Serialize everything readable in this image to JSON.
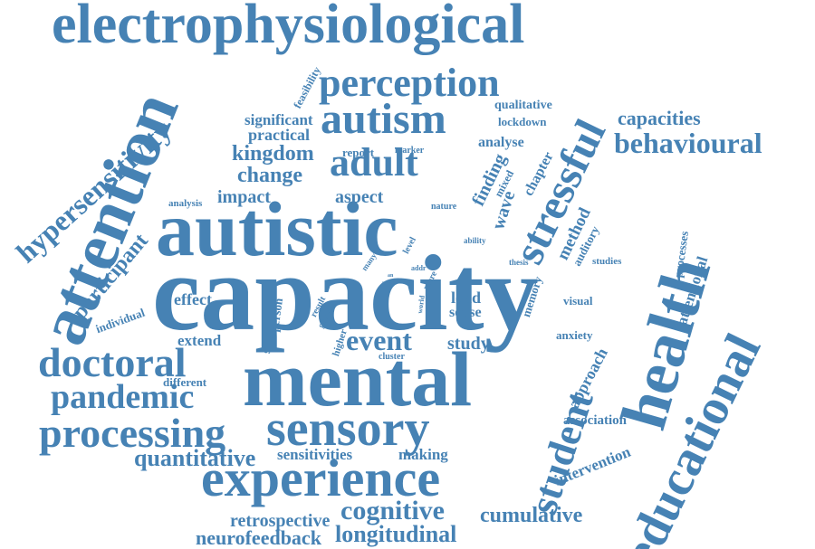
{
  "color": "#4682b4",
  "words": [
    "electrophysiological",
    "capacity",
    "autistic",
    "mental",
    "attention",
    "health",
    "educational",
    "sensory",
    "experience",
    "autism",
    "adult",
    "perception",
    "stressful",
    "doctoral",
    "processing",
    "pandemic",
    "student",
    "behavioural",
    "capacities",
    "hypersensitivity",
    "cognitive",
    "longitudinal",
    "neurofeedback",
    "retrospective",
    "cumulative",
    "quantitative",
    "event",
    "kingdom",
    "change",
    "participant",
    "impact",
    "aspect",
    "significant",
    "practical",
    "study",
    "load",
    "sense",
    "effect",
    "extend",
    "different",
    "sensitivities",
    "making",
    "intervention",
    "association",
    "approach",
    "anxiety",
    "attentional",
    "processes",
    "method",
    "auditory",
    "studies",
    "visual",
    "memory",
    "wave",
    "chapter",
    "finding",
    "mixed",
    "lockdown",
    "qualitative",
    "analyse",
    "report",
    "marker",
    "nature",
    "analysis",
    "individual",
    "person",
    "stage",
    "result",
    "group",
    "higher",
    "cluster",
    "world",
    "more",
    "many",
    "level",
    "ability",
    "thesis",
    "addr",
    "proc",
    "an",
    "feasibility"
  ]
}
